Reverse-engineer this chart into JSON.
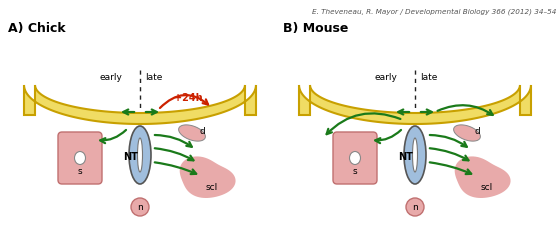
{
  "title_text": "E. Theveneau, R. Mayor / Developmental Biology 366 (2012) 34–54",
  "panel_A_label": "A) Chick",
  "panel_B_label": "B) Mouse",
  "early_label": "early",
  "late_label": "late",
  "NT_label": "NT",
  "s_label": "s",
  "n_label": "n",
  "d_label": "d",
  "scl_label": "scl",
  "plus24h_label": "+24h",
  "bg_color": "#ffffff",
  "skin_color": "#f0dc64",
  "skin_edge_color": "#c8a000",
  "NT_color": "#a0bedd",
  "somite_color": "#e8aaaa",
  "somite_edge_color": "#c07070",
  "green_arrow": "#1a7a1a",
  "red_arrow": "#cc2200",
  "text_color": "#111111",
  "title_color": "#555555",
  "dashed_color": "#222222"
}
